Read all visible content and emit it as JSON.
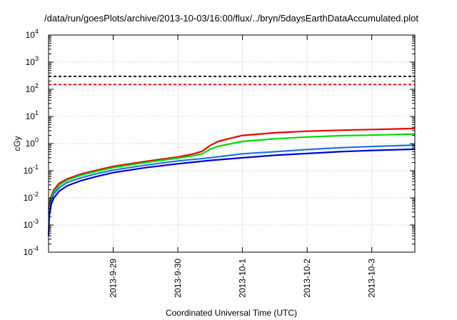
{
  "chart_data": {
    "type": "line",
    "title": "/data/run/goesPlots/archive/2013-10-03/16:00/flux/../bryn/5daysEarthDataAccumulated.plot",
    "xlabel": "Coordinated Universal Time (UTC)",
    "ylabel": "cGy",
    "x_axis": {
      "type": "time",
      "range": [
        "2013-09-28T00:00",
        "2013-10-03T16:00"
      ],
      "ticks": [
        "2013-09-29T00:00",
        "2013-09-30T00:00",
        "2013-10-01T00:00",
        "2013-10-02T00:00",
        "2013-10-03T00:00"
      ],
      "tick_labels": [
        "2013-9-29",
        "2013-9-30",
        "2013-10-1",
        "2013-10-2",
        "2013-10-3"
      ]
    },
    "y_axis": {
      "scale": "log",
      "range": [
        0.0001,
        10000
      ],
      "ticks": [
        {
          "value": 0.0001,
          "base": "10",
          "exp": "-4"
        },
        {
          "value": 0.001,
          "base": "10",
          "exp": "-3"
        },
        {
          "value": 0.01,
          "base": "10",
          "exp": "-2"
        },
        {
          "value": 0.1,
          "base": "10",
          "exp": "-1"
        },
        {
          "value": 1,
          "base": "10",
          "exp": "0"
        },
        {
          "value": 10,
          "base": "10",
          "exp": "1"
        },
        {
          "value": 100,
          "base": "10",
          "exp": "2"
        },
        {
          "value": 1000,
          "base": "10",
          "exp": "3"
        },
        {
          "value": 10000,
          "base": "10",
          "exp": "4"
        }
      ]
    },
    "grid": true,
    "reference_lines": [
      {
        "value": 300,
        "color": "#000000",
        "style": "dashed"
      },
      {
        "value": 150,
        "color": "#ee0000",
        "style": "dashed"
      }
    ],
    "series": [
      {
        "color": "#ee0000",
        "points": [
          [
            "2013-09-28T00:00",
            0.004
          ],
          [
            "2013-09-28T01:00",
            0.012
          ],
          [
            "2013-09-28T02:00",
            0.02
          ],
          [
            "2013-09-28T04:00",
            0.035
          ],
          [
            "2013-09-28T07:00",
            0.05
          ],
          [
            "2013-09-28T12:00",
            0.075
          ],
          [
            "2013-09-28T18:00",
            0.105
          ],
          [
            "2013-09-29T00:00",
            0.145
          ],
          [
            "2013-09-29T12:00",
            0.22
          ],
          [
            "2013-09-30T00:00",
            0.32
          ],
          [
            "2013-09-30T06:00",
            0.42
          ],
          [
            "2013-09-30T09:00",
            0.52
          ],
          [
            "2013-09-30T12:00",
            0.85
          ],
          [
            "2013-09-30T15:00",
            1.2
          ],
          [
            "2013-09-30T20:00",
            1.6
          ],
          [
            "2013-10-01T00:00",
            2.0
          ],
          [
            "2013-10-01T12:00",
            2.5
          ],
          [
            "2013-10-02T00:00",
            2.85
          ],
          [
            "2013-10-02T12:00",
            3.1
          ],
          [
            "2013-10-03T00:00",
            3.3
          ],
          [
            "2013-10-03T16:00",
            3.6
          ]
        ]
      },
      {
        "color": "#00dd00",
        "points": [
          [
            "2013-09-28T00:00",
            0.003
          ],
          [
            "2013-09-28T01:00",
            0.01
          ],
          [
            "2013-09-28T02:00",
            0.017
          ],
          [
            "2013-09-28T04:00",
            0.03
          ],
          [
            "2013-09-28T07:00",
            0.045
          ],
          [
            "2013-09-28T12:00",
            0.068
          ],
          [
            "2013-09-28T18:00",
            0.095
          ],
          [
            "2013-09-29T00:00",
            0.13
          ],
          [
            "2013-09-29T12:00",
            0.2
          ],
          [
            "2013-09-30T00:00",
            0.29
          ],
          [
            "2013-09-30T06:00",
            0.36
          ],
          [
            "2013-09-30T09:00",
            0.42
          ],
          [
            "2013-09-30T12:00",
            0.62
          ],
          [
            "2013-09-30T15:00",
            0.8
          ],
          [
            "2013-09-30T20:00",
            1.0
          ],
          [
            "2013-10-01T00:00",
            1.2
          ],
          [
            "2013-10-01T12:00",
            1.5
          ],
          [
            "2013-10-02T00:00",
            1.75
          ],
          [
            "2013-10-02T12:00",
            1.95
          ],
          [
            "2013-10-03T00:00",
            2.05
          ],
          [
            "2013-10-03T16:00",
            2.25
          ]
        ]
      },
      {
        "color": "#1e78d8",
        "points": [
          [
            "2013-09-28T00:00",
            0.0025
          ],
          [
            "2013-09-28T01:00",
            0.008
          ],
          [
            "2013-09-28T02:00",
            0.014
          ],
          [
            "2013-09-28T04:00",
            0.024
          ],
          [
            "2013-09-28T07:00",
            0.037
          ],
          [
            "2013-09-28T12:00",
            0.055
          ],
          [
            "2013-09-28T18:00",
            0.078
          ],
          [
            "2013-09-29T00:00",
            0.105
          ],
          [
            "2013-09-29T12:00",
            0.16
          ],
          [
            "2013-09-30T00:00",
            0.23
          ],
          [
            "2013-09-30T12:00",
            0.3
          ],
          [
            "2013-10-01T00:00",
            0.42
          ],
          [
            "2013-10-01T12:00",
            0.5
          ],
          [
            "2013-10-02T00:00",
            0.6
          ],
          [
            "2013-10-02T12:00",
            0.7
          ],
          [
            "2013-10-03T00:00",
            0.78
          ],
          [
            "2013-10-03T16:00",
            0.88
          ]
        ]
      },
      {
        "color": "#0000dd",
        "points": [
          [
            "2013-09-28T00:00",
            0.0004
          ],
          [
            "2013-09-28T00:15",
            0.002
          ],
          [
            "2013-09-28T01:00",
            0.006
          ],
          [
            "2013-09-28T02:00",
            0.01
          ],
          [
            "2013-09-28T04:00",
            0.018
          ],
          [
            "2013-09-28T07:00",
            0.028
          ],
          [
            "2013-09-28T12:00",
            0.043
          ],
          [
            "2013-09-28T18:00",
            0.062
          ],
          [
            "2013-09-29T00:00",
            0.085
          ],
          [
            "2013-09-29T12:00",
            0.13
          ],
          [
            "2013-09-30T00:00",
            0.18
          ],
          [
            "2013-09-30T12:00",
            0.24
          ],
          [
            "2013-10-01T00:00",
            0.3
          ],
          [
            "2013-10-01T12:00",
            0.37
          ],
          [
            "2013-10-02T00:00",
            0.43
          ],
          [
            "2013-10-02T12:00",
            0.5
          ],
          [
            "2013-10-03T00:00",
            0.56
          ],
          [
            "2013-10-03T16:00",
            0.62
          ]
        ]
      }
    ]
  }
}
